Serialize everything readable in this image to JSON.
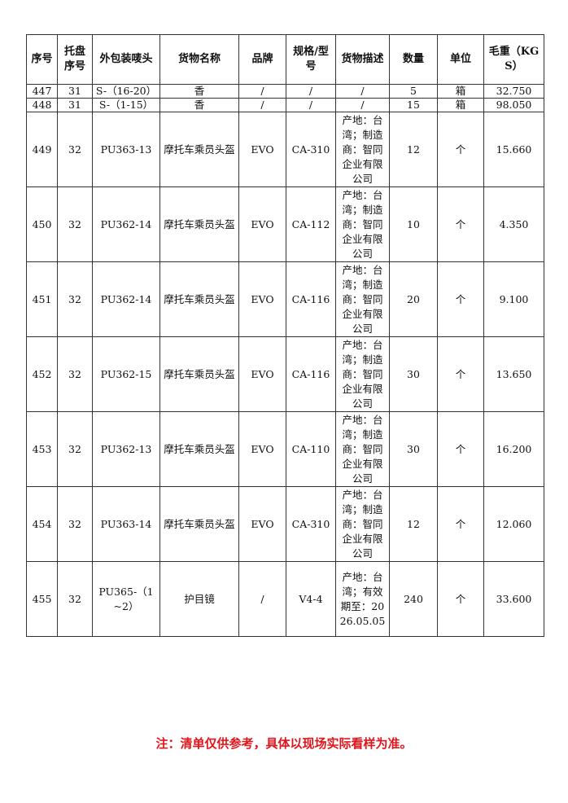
{
  "headers": [
    "序号",
    "托盘序号",
    "外包装唛头",
    "货物名称",
    "品牌",
    "规格/型号",
    "货物描述",
    "数量",
    "单位",
    "毛重（KGS）"
  ],
  "rows": [
    [
      "447",
      "31",
      "S-（16-20）",
      "香",
      "/",
      "/",
      "/",
      "5",
      "箱",
      "32.750"
    ],
    [
      "448",
      "31",
      "S-（1-15）",
      "香",
      "/",
      "/",
      "/",
      "15",
      "箱",
      "98.050"
    ],
    [
      "449",
      "32",
      "PU363-13",
      "摩托车乘员头盔",
      "EVO",
      "CA-310",
      "产地：台湾；制造商：智同企业有限公司",
      "12",
      "个",
      "15.660"
    ],
    [
      "450",
      "32",
      "PU362-14",
      "摩托车乘员头盔",
      "EVO",
      "CA-112",
      "产地：台湾；制造商：智同企业有限公司",
      "10",
      "个",
      "4.350"
    ],
    [
      "451",
      "32",
      "PU362-14",
      "摩托车乘员头盔",
      "EVO",
      "CA-116",
      "产地：台湾；制造商：智同企业有限公司",
      "20",
      "个",
      "9.100"
    ],
    [
      "452",
      "32",
      "PU362-15",
      "摩托车乘员头盔",
      "EVO",
      "CA-116",
      "产地：台湾；制造商：智同企业有限公司",
      "30",
      "个",
      "13.650"
    ],
    [
      "453",
      "32",
      "PU362-13",
      "摩托车乘员头盔",
      "EVO",
      "CA-110",
      "产地：台湾；制造商：智同企业有限公司",
      "30",
      "个",
      "16.200"
    ],
    [
      "454",
      "32",
      "PU363-14",
      "摩托车乘员头盔",
      "EVO",
      "CA-310",
      "产地：台湾；制造商：智同企业有限公司",
      "12",
      "个",
      "12.060"
    ],
    [
      "455",
      "32",
      "PU365-（1~2）",
      "护目镜",
      "/",
      "V4-4",
      "产地：台湾；有效期至：2026.05.05",
      "240",
      "个",
      "33.600"
    ]
  ],
  "footer_note": "注：清单仅供参考，具体以现场实际看样为准。"
}
